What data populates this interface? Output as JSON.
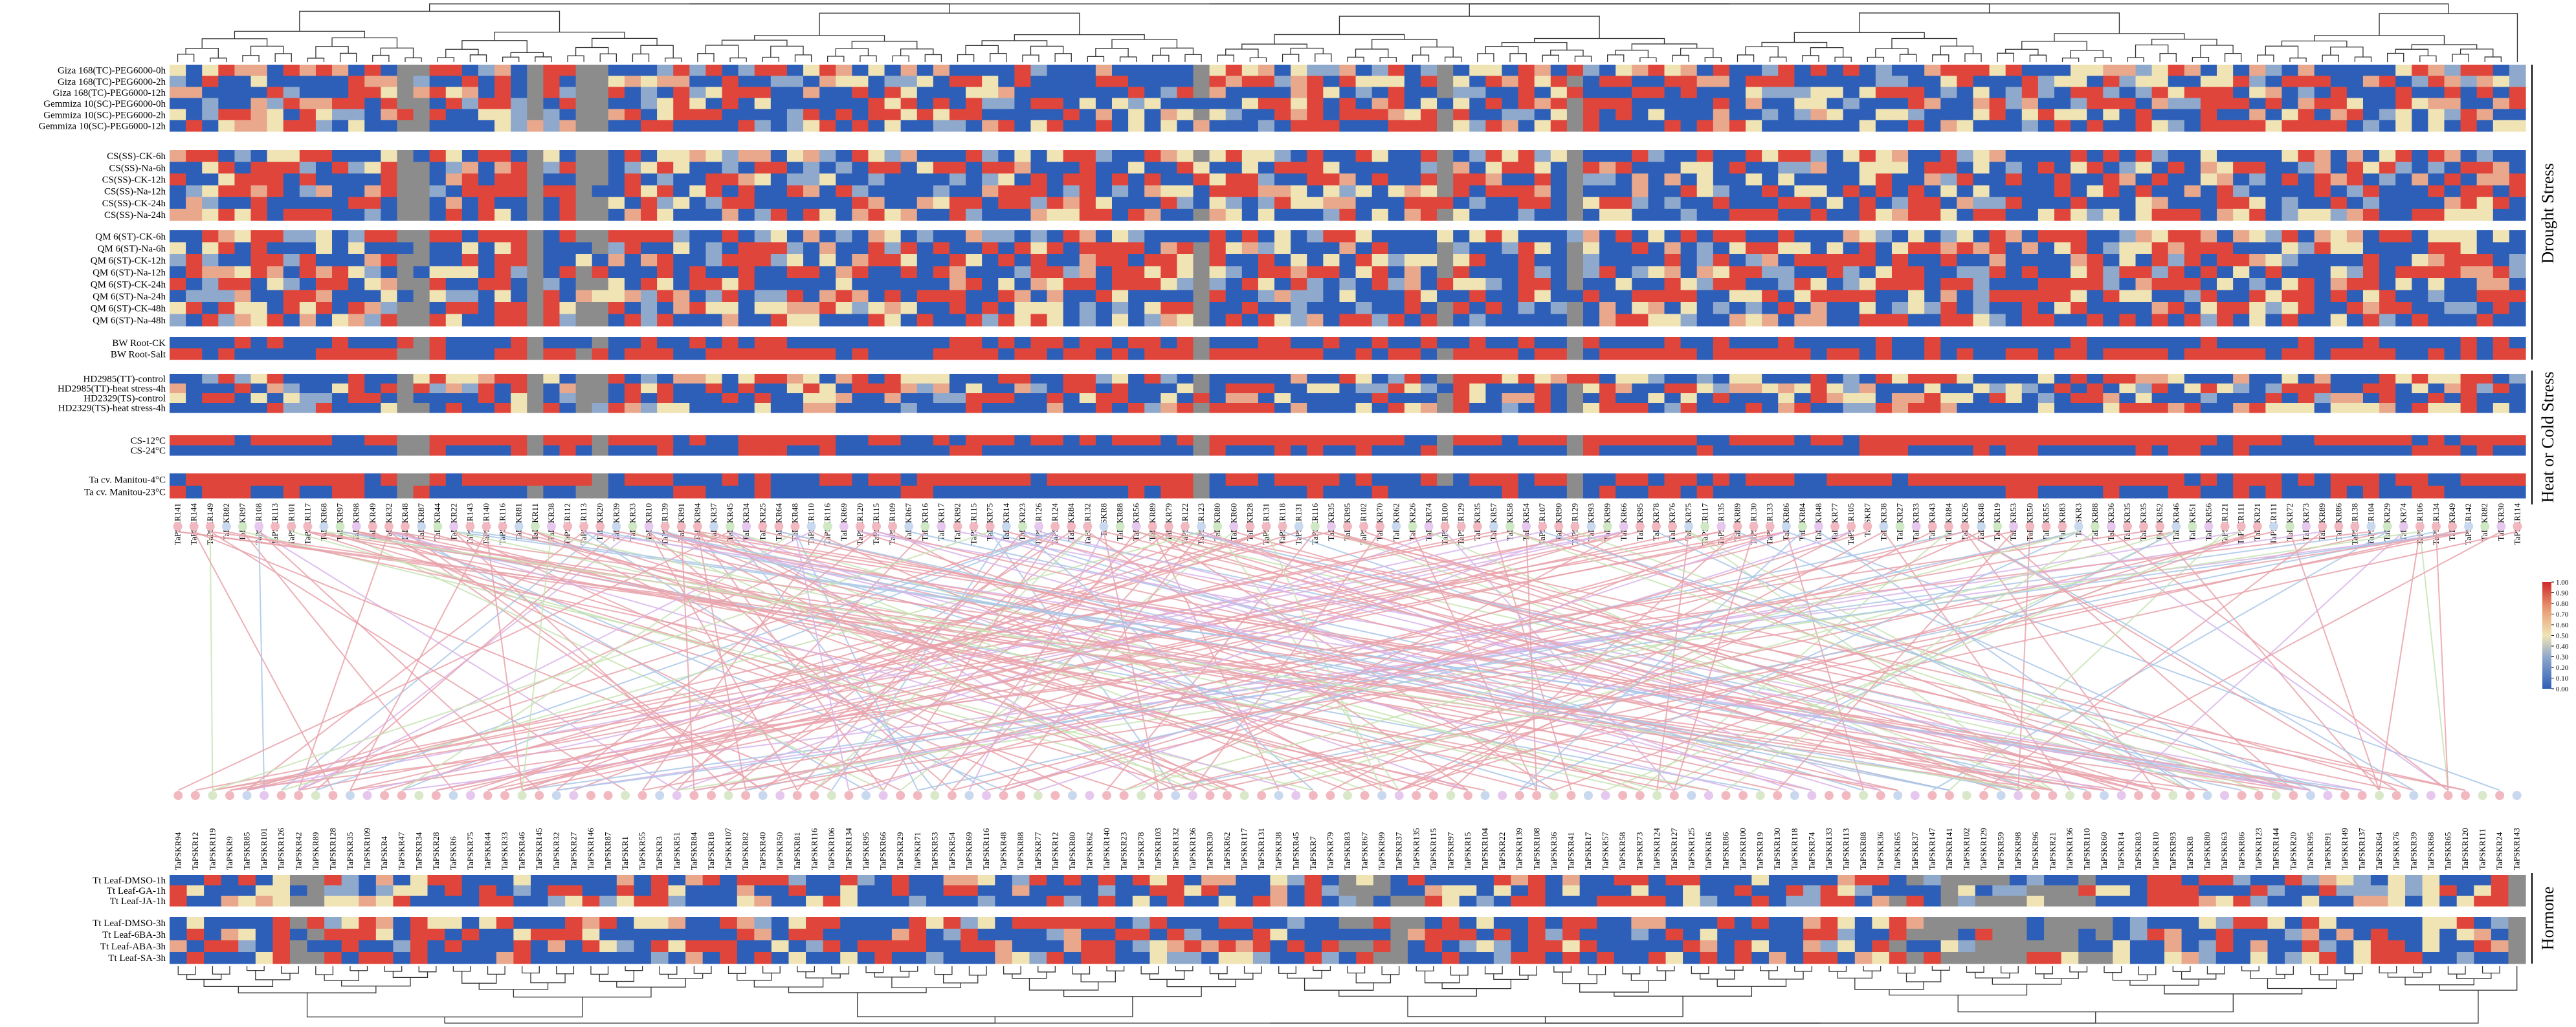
{
  "chart_data": {
    "type": "heatmap",
    "colorbar": {
      "ticks": [
        "0.00",
        "0.10",
        "0.20",
        "0.30",
        "0.40",
        "0.50",
        "0.60",
        "0.70",
        "0.80",
        "0.90",
        "1.00"
      ],
      "colors": [
        "#2e5fb8",
        "#8fa9cc",
        "#f0e4b4",
        "#e0453b",
        "#d02a2a"
      ],
      "missing_color": "#8c8c8c"
    },
    "section_labels": [
      "Drought Stress",
      "Heat or Cold Stress",
      "Hormone"
    ],
    "top_panel": {
      "columns": [
        "TaPSKR141",
        "TaPSKR144",
        "TaPSKR149",
        "TaPSKR82",
        "TaPSKR97",
        "TaPSKR108",
        "TaPSKR113",
        "TaPSKR101",
        "TaPSKR117",
        "TaPSKR68",
        "TaPSKR97",
        "TaPSKR98",
        "TaPSKR49",
        "TaPSKR32",
        "TaPSKR48",
        "TaPSKR87",
        "TaPSKR44",
        "TaPSKR22",
        "TaPSKR143",
        "TaPSKR140",
        "TaPSKR116",
        "TaPSKR81",
        "TaPSKR11",
        "TaPSKR38",
        "TaPSKR112",
        "TaPSKR113",
        "TaPSKR20",
        "TaPSKR39",
        "TaPSKR33",
        "TaPSKR10",
        "TaPSKR139",
        "TaPSKR91",
        "TaPSKR94",
        "TaPSKR37",
        "TaPSKR45",
        "TaPSKR34",
        "TaPSKR25",
        "TaPSKR64",
        "TaPSKR48",
        "TaPSKR110",
        "TaPSKR116",
        "TaPSKR69",
        "TaPSKR120",
        "TaPSKR115",
        "TaPSKR109",
        "TaPSKR67",
        "TaPSKR16",
        "TaPSKR17",
        "TaPSKR92",
        "TaPSKR115",
        "TaPSKR75",
        "TaPSKR14",
        "TaPSKR23",
        "TaPSKR126",
        "TaPSKR124",
        "TaPSKR84",
        "TaPSKR132",
        "TaPSKR8",
        "TaPSKR88",
        "TaPSKR56",
        "TaPSKR89",
        "TaPSKR79",
        "TaPSKR122",
        "TaPSKR123",
        "TaPSKR80",
        "TaPSKR60",
        "TaPSKR28",
        "TaPSKR131",
        "TaPSKR118",
        "TaPSKR131",
        "TaPSKR116",
        "TaPSKR35",
        "TaPSKR95",
        "TaPSKR102",
        "TaPSKR70",
        "TaPSKR62",
        "TaPSKR26",
        "TaPSKR74",
        "TaPSKR100",
        "TaPSKR129",
        "TaPSKR35",
        "TaPSKR57",
        "TaPSKR58",
        "TaPSKR54",
        "TaPSKR107",
        "TaPSKR90",
        "TaPSKR129",
        "TaPSKR93",
        "TaPSKR99",
        "TaPSKR66",
        "TaPSKR95",
        "TaPSKR78",
        "TaPSKR76",
        "TaPSKR75",
        "TaPSKR117",
        "TaPSKR135",
        "TaPSKR89",
        "TaPSKR130",
        "TaPSKR133",
        "TaPSKR86",
        "TaPSKR84",
        "TaPSKR48",
        "TaPSKR77",
        "TaPSKR105",
        "TaPSKR7",
        "TaPSKR38",
        "TaPSKR27",
        "TaPSKR33",
        "TaPSKR43",
        "TaPSKR84",
        "TaPSKR26",
        "TaPSKR48",
        "TaPSKR19",
        "TaPSKR53",
        "TaPSKR50",
        "TaPSKR55",
        "TaPSKR83",
        "TaPSKR3",
        "TaPSKR88",
        "TaPSKR36",
        "TaPSKR35",
        "TaPSKR35",
        "TaPSKR52",
        "TaPSKR46",
        "TaPSKR51",
        "TaPSKR56",
        "TaPSKR121",
        "TaPSKR111",
        "TaPSKR21",
        "TaPSKR111",
        "TaPSKR72",
        "TaPSKR73",
        "TaPSKR89",
        "TaPSKR86",
        "TaPSKR138",
        "TaPSKR104",
        "TaPSKR29",
        "TaPSKR74",
        "TaPSKR106",
        "TaPSKR134",
        "TaPSKR49",
        "TaPSKR142",
        "TaPSKR82",
        "TaPSKR30",
        "TaPSKR114"
      ],
      "row_groups": [
        {
          "section": "Drought Stress",
          "rows": [
            "Giza 168(TC)-PEG6000-0h",
            "Giza 168(TC)-PEG6000-2h",
            "Giza 168(TC)-PEG6000-12h",
            "Gemmiza 10(SC)-PEG6000-0h",
            "Gemmiza 10(SC)-PEG6000-2h",
            "Gemmiza 10(SC)-PEG6000-12h"
          ]
        },
        {
          "section": "Drought Stress",
          "rows": [
            "CS(SS)-CK-6h",
            "CS(SS)-Na-6h",
            "CS(SS)-CK-12h",
            "CS(SS)-Na-12h",
            "CS(SS)-CK-24h",
            "CS(SS)-Na-24h"
          ]
        },
        {
          "section": "Drought Stress",
          "rows": [
            "QM 6(ST)-CK-6h",
            "QM 6(ST)-Na-6h",
            "QM 6(ST)-CK-12h",
            "QM 6(ST)-Na-12h",
            "QM 6(ST)-CK-24h",
            "QM 6(ST)-Na-24h",
            "QM 6(ST)-CK-48h",
            "QM 6(ST)-Na-48h"
          ]
        },
        {
          "section": "Drought Stress",
          "rows": [
            "BW Root-CK",
            "BW Root-Salt"
          ]
        },
        {
          "section": "Heat or Cold Stress",
          "rows": [
            "HD2985(TT)-control",
            "HD2985(TT)-heat stress-4h",
            "HD2329(TS)-control",
            "HD2329(TS)-heat stress-4h"
          ]
        },
        {
          "section": "Heat or Cold Stress",
          "rows": [
            "CS-12°C",
            "CS-24°C"
          ]
        },
        {
          "section": "Heat or Cold Stress",
          "rows": [
            "Ta cv. Manitou-4°C",
            "Ta cv. Manitou-23°C"
          ]
        }
      ]
    },
    "bottom_panel": {
      "columns": [
        "TaPSKR94",
        "TaPSKR12",
        "TaPSKR119",
        "TaPSKR9",
        "TaPSKR85",
        "TaPSKR101",
        "TaPSKR126",
        "TaPSKR42",
        "TaPSKR89",
        "TaPSKR128",
        "TaPSKR35",
        "TaPSKR109",
        "TaPSKR4",
        "TaPSKR47",
        "TaPSKR34",
        "TaPSKR28",
        "TaPSKR6",
        "TaPSKR75",
        "TaPSKR44",
        "TaPSKR33",
        "TaPSKR46",
        "TaPSKR145",
        "TaPSKR32",
        "TaPSKR27",
        "TaPSKR146",
        "TaPSKR87",
        "TaPSKR1",
        "TaPSKR55",
        "TaPSKR3",
        "TaPSKR51",
        "TaPSKR84",
        "TaPSKR18",
        "TaPSKR107",
        "TaPSKR82",
        "TaPSKR40",
        "TaPSKR50",
        "TaPSKR81",
        "TaPSKR116",
        "TaPSKR106",
        "TaPSKR134",
        "TaPSKR95",
        "TaPSKR66",
        "TaPSKR29",
        "TaPSKR71",
        "TaPSKR53",
        "TaPSKR54",
        "TaPSKR69",
        "TaPSKR116",
        "TaPSKR48",
        "TaPSKR88",
        "TaPSKR77",
        "TaPSKR12",
        "TaPSKR80",
        "TaPSKR62",
        "TaPSKR140",
        "TaPSKR23",
        "TaPSKR78",
        "TaPSKR103",
        "TaPSKR132",
        "TaPSKR136",
        "TaPSKR30",
        "TaPSKR62",
        "TaPSKR117",
        "TaPSKR131",
        "TaPSKR38",
        "TaPSKR45",
        "TaPSKR7",
        "TaPSKR79",
        "TaPSKR83",
        "TaPSKR67",
        "TaPSKR99",
        "TaPSKR37",
        "TaPSKR135",
        "TaPSKR115",
        "TaPSKR97",
        "TaPSKR15",
        "TaPSKR104",
        "TaPSKR22",
        "TaPSKR139",
        "TaPSKR108",
        "TaPSKR36",
        "TaPSKR41",
        "TaPSKR17",
        "TaPSKR57",
        "TaPSKR58",
        "TaPSKR73",
        "TaPSKR124",
        "TaPSKR127",
        "TaPSKR125",
        "TaPSKR16",
        "TaPSKR86",
        "TaPSKR100",
        "TaPSKR19",
        "TaPSKR130",
        "TaPSKR118",
        "TaPSKR74",
        "TaPSKR133",
        "TaPSKR113",
        "TaPSKR88",
        "TaPSKR36",
        "TaPSKR65",
        "TaPSKR37",
        "TaPSKR147",
        "TaPSKR141",
        "TaPSKR102",
        "TaPSKR129",
        "TaPSKR59",
        "TaPSKR98",
        "TaPSKR96",
        "TaPSKR21",
        "TaPSKR136",
        "TaPSKR110",
        "TaPSKR60",
        "TaPSKR14",
        "TaPSKR83",
        "TaPSKR10",
        "TaPSKR93",
        "TaPSKR8",
        "TaPSKR80",
        "TaPSKR63",
        "TaPSKR86",
        "TaPSKR123",
        "TaPSKR144",
        "TaPSKR20",
        "TaPSKR95",
        "TaPSKR91",
        "TaPSKR149",
        "TaPSKR137",
        "TaPSKR64",
        "TaPSKR76",
        "TaPSKR39",
        "TaPSKR68",
        "TaPSKR65",
        "TaPSKR120",
        "TaPSKR111",
        "TaPSKR24",
        "TaPSKR143"
      ],
      "row_groups": [
        {
          "section": "Hormone",
          "rows": [
            "Tt Leaf-DMSO-1h",
            "Tt Leaf-GA-1h",
            "Tt Leaf-JA-1h"
          ]
        },
        {
          "section": "Hormone",
          "rows": [
            "Tt Leaf-DMSO-3h",
            "Tt Leaf-6BA-3h",
            "Tt Leaf-ABA-3h",
            "Tt Leaf-SA-3h"
          ]
        }
      ]
    }
  }
}
